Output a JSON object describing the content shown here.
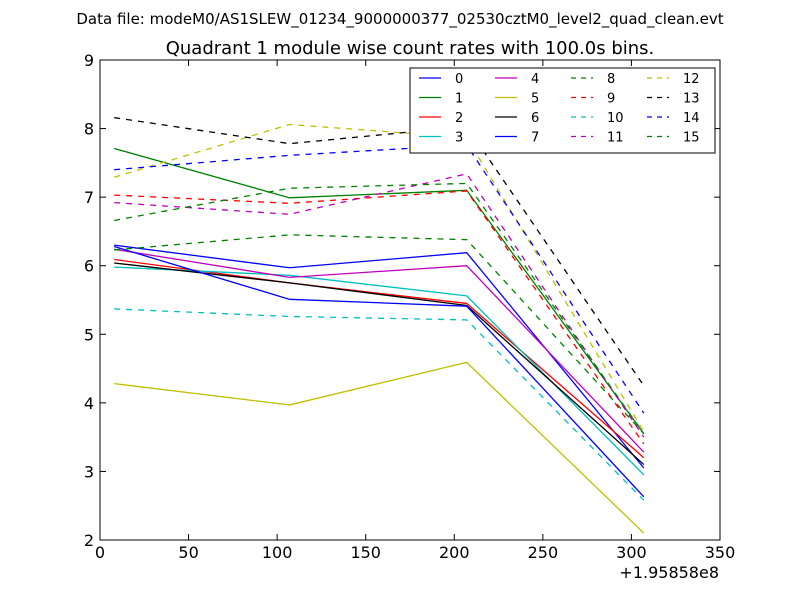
{
  "chart_data": {
    "type": "line",
    "suptitle": "Data file: modeM0/AS1SLEW_01234_9000000377_02530cztM0_level2_quad_clean.evt",
    "title": "Quadrant 1 module wise count rates with 100.0s bins.",
    "xlabel": "",
    "ylabel": "",
    "x_offset_label": "+1.95858e8",
    "xlim": [
      0,
      350
    ],
    "ylim": [
      2,
      9
    ],
    "x_ticks": [
      "0",
      "50",
      "100",
      "150",
      "200",
      "250",
      "300",
      "350"
    ],
    "y_ticks": [
      "2",
      "3",
      "4",
      "5",
      "6",
      "7",
      "8",
      "9"
    ],
    "grid": false,
    "legend_position": "top-right",
    "x": [
      8,
      107,
      207,
      307
    ],
    "series": [
      {
        "name": "0",
        "color": "#0000ff",
        "dash": "solid",
        "values": [
          6.3,
          5.97,
          6.19,
          3.05
        ]
      },
      {
        "name": "1",
        "color": "#008000",
        "dash": "solid",
        "values": [
          7.71,
          6.99,
          7.1,
          3.55
        ]
      },
      {
        "name": "2",
        "color": "#ff0000",
        "dash": "solid",
        "values": [
          6.09,
          5.75,
          5.45,
          3.2
        ]
      },
      {
        "name": "3",
        "color": "#00bfbf",
        "dash": "solid",
        "values": [
          5.98,
          5.86,
          5.56,
          2.95
        ]
      },
      {
        "name": "4",
        "color": "#bf00bf",
        "dash": "solid",
        "values": [
          6.24,
          5.83,
          6.0,
          3.28
        ]
      },
      {
        "name": "5",
        "color": "#bfbf00",
        "dash": "solid",
        "values": [
          4.28,
          3.97,
          4.59,
          2.1
        ]
      },
      {
        "name": "6",
        "color": "#000000",
        "dash": "solid",
        "values": [
          6.04,
          5.75,
          5.42,
          3.1
        ]
      },
      {
        "name": "7",
        "color": "#0000ff",
        "dash": "solid",
        "values": [
          6.28,
          5.51,
          5.41,
          2.63
        ]
      },
      {
        "name": "8",
        "color": "#008000",
        "dash": "dashed",
        "values": [
          6.23,
          6.45,
          6.38,
          3.55
        ]
      },
      {
        "name": "9",
        "color": "#ff0000",
        "dash": "dashed",
        "values": [
          7.03,
          6.91,
          7.09,
          3.4
        ]
      },
      {
        "name": "10",
        "color": "#00bfbf",
        "dash": "dashed",
        "values": [
          5.37,
          5.26,
          5.21,
          2.58
        ]
      },
      {
        "name": "11",
        "color": "#bf00bf",
        "dash": "dashed",
        "values": [
          6.92,
          6.75,
          7.34,
          3.5
        ]
      },
      {
        "name": "12",
        "color": "#bfbf00",
        "dash": "dashed",
        "values": [
          7.29,
          8.06,
          7.87,
          3.58
        ]
      },
      {
        "name": "13",
        "color": "#000000",
        "dash": "dashed",
        "values": [
          8.16,
          7.78,
          8.03,
          4.25
        ]
      },
      {
        "name": "14",
        "color": "#0000ff",
        "dash": "dashed",
        "values": [
          7.4,
          7.61,
          7.76,
          3.85
        ]
      },
      {
        "name": "15",
        "color": "#008000",
        "dash": "dashed",
        "values": [
          6.66,
          7.13,
          7.2,
          3.55
        ]
      }
    ]
  }
}
